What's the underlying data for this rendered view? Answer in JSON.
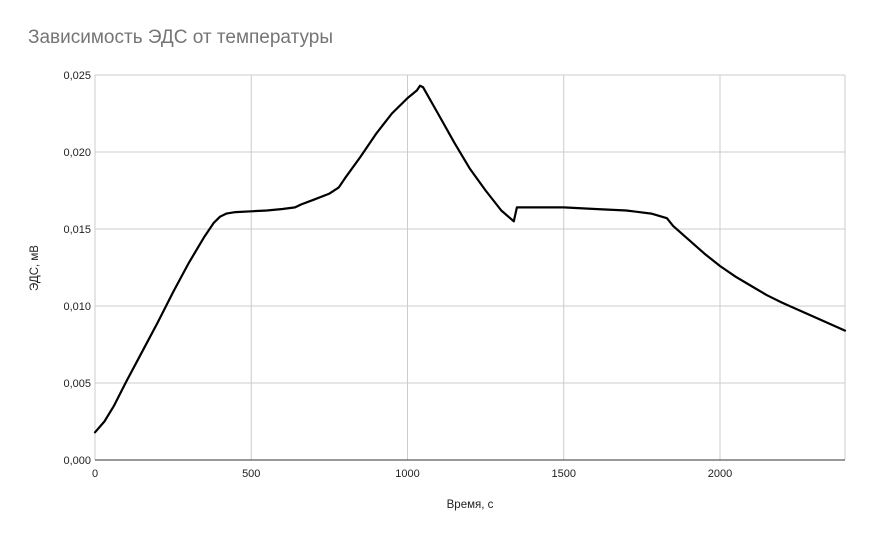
{
  "chart_data": {
    "type": "line",
    "title": "Зависимость ЭДС от температуры",
    "xlabel": "Время, с",
    "ylabel": "ЭДС, мВ",
    "xlim": [
      0,
      2400
    ],
    "ylim": [
      0,
      0.025
    ],
    "x_ticks": [
      0,
      500,
      1000,
      1500,
      2000
    ],
    "x_tick_labels": [
      "0",
      "500",
      "1000",
      "1500",
      "2000"
    ],
    "y_ticks": [
      0,
      0.005,
      0.01,
      0.015,
      0.02,
      0.025
    ],
    "y_tick_labels": [
      "0,000",
      "0,005",
      "0,010",
      "0,015",
      "0,020",
      "0,025"
    ],
    "grid": true,
    "line_color": "#000000",
    "series": [
      {
        "x": [
          0,
          30,
          60,
          100,
          150,
          200,
          250,
          300,
          350,
          380,
          400,
          420,
          450,
          500,
          550,
          600,
          640,
          660,
          700,
          750,
          780,
          800,
          850,
          900,
          950,
          1000,
          1030,
          1040,
          1050,
          1100,
          1150,
          1200,
          1250,
          1300,
          1340,
          1350,
          1360,
          1400,
          1500,
          1600,
          1700,
          1780,
          1830,
          1850,
          1900,
          1950,
          2000,
          2050,
          2100,
          2150,
          2200,
          2300,
          2400
        ],
        "y": [
          0.0018,
          0.0025,
          0.0035,
          0.0051,
          0.007,
          0.0089,
          0.0109,
          0.0128,
          0.0145,
          0.0154,
          0.0158,
          0.016,
          0.0161,
          0.01615,
          0.0162,
          0.0163,
          0.0164,
          0.0166,
          0.0169,
          0.0173,
          0.0177,
          0.0183,
          0.0197,
          0.0212,
          0.0225,
          0.0235,
          0.024,
          0.0243,
          0.0242,
          0.0224,
          0.0206,
          0.0189,
          0.0175,
          0.0162,
          0.0155,
          0.0164,
          0.0164,
          0.0164,
          0.0164,
          0.0163,
          0.0162,
          0.016,
          0.0157,
          0.0152,
          0.0143,
          0.0134,
          0.0126,
          0.0119,
          0.0113,
          0.0107,
          0.0102,
          0.0093,
          0.0084
        ]
      }
    ]
  }
}
